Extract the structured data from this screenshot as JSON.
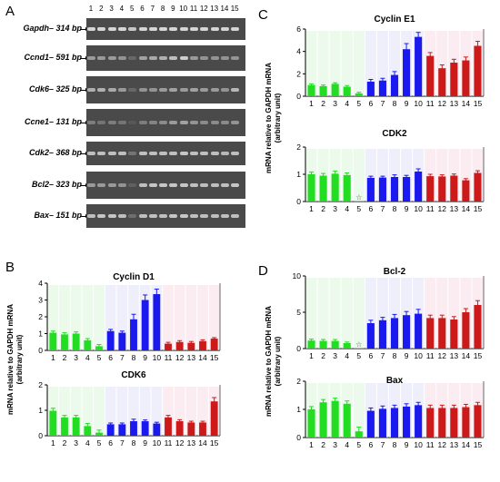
{
  "panels": {
    "A": {
      "letter": "A"
    },
    "B": {
      "letter": "B"
    },
    "C": {
      "letter": "C"
    },
    "D": {
      "letter": "D"
    }
  },
  "gel": {
    "lanes": [
      "1",
      "2",
      "3",
      "4",
      "5",
      "6",
      "7",
      "8",
      "9",
      "10",
      "11",
      "12",
      "13",
      "14",
      "15"
    ],
    "rows": [
      {
        "gene": "Gapdh",
        "size": "314 bp",
        "intensities": [
          0.95,
          0.95,
          0.95,
          0.95,
          0.85,
          0.95,
          0.95,
          0.95,
          0.95,
          0.95,
          0.95,
          0.95,
          0.95,
          0.95,
          0.95
        ]
      },
      {
        "gene": "Ccnd1",
        "size": "591 bp",
        "intensities": [
          0.55,
          0.55,
          0.55,
          0.5,
          0.2,
          0.6,
          0.65,
          0.7,
          0.8,
          0.9,
          0.55,
          0.5,
          0.5,
          0.5,
          0.5
        ]
      },
      {
        "gene": "Cdk6",
        "size": "325 bp",
        "intensities": [
          0.7,
          0.7,
          0.65,
          0.55,
          0.2,
          0.5,
          0.5,
          0.55,
          0.6,
          0.55,
          0.6,
          0.55,
          0.55,
          0.5,
          0.75
        ]
      },
      {
        "gene": "Ccne1",
        "size": "131 bp",
        "intensities": [
          0.35,
          0.3,
          0.35,
          0.3,
          0.1,
          0.35,
          0.4,
          0.45,
          0.55,
          0.6,
          0.5,
          0.45,
          0.45,
          0.45,
          0.5
        ]
      },
      {
        "gene": "Cdk2",
        "size": "368 bp",
        "intensities": [
          0.8,
          0.8,
          0.8,
          0.8,
          0.3,
          0.8,
          0.8,
          0.8,
          0.8,
          0.85,
          0.8,
          0.8,
          0.8,
          0.75,
          0.8
        ]
      },
      {
        "gene": "Bcl2",
        "size": "323 bp",
        "intensities": [
          0.55,
          0.55,
          0.55,
          0.5,
          0.15,
          0.8,
          0.85,
          0.85,
          0.85,
          0.85,
          0.8,
          0.8,
          0.8,
          0.8,
          0.85
        ]
      },
      {
        "gene": "Bax",
        "size": "151 bp",
        "intensities": [
          0.8,
          0.85,
          0.85,
          0.8,
          0.25,
          0.8,
          0.8,
          0.8,
          0.85,
          0.85,
          0.8,
          0.8,
          0.8,
          0.8,
          0.8
        ]
      }
    ]
  },
  "ylabel": {
    "line1": "mRNA relative to GAPDH mRNA",
    "line2": "(arbitrary unit)"
  },
  "colors": {
    "green": "#22dd22",
    "blue": "#1a1aee",
    "red": "#cc1a1a",
    "green_bg": "#ddf5dd",
    "blue_bg": "#e2e2f8",
    "red_bg": "#f8dde6"
  },
  "chart_data": [
    {
      "type": "bar",
      "title": "Cyclin E1",
      "categories": [
        "1",
        "2",
        "3",
        "4",
        "5",
        "6",
        "7",
        "8",
        "9",
        "10",
        "11",
        "12",
        "13",
        "14",
        "15"
      ],
      "values": [
        1.0,
        0.9,
        1.1,
        0.85,
        0.25,
        1.3,
        1.4,
        1.9,
        4.2,
        5.3,
        3.6,
        2.5,
        3.0,
        3.2,
        4.5
      ],
      "errors": [
        0.1,
        0.1,
        0.1,
        0.1,
        0.1,
        0.2,
        0.2,
        0.3,
        0.5,
        0.4,
        0.3,
        0.3,
        0.3,
        0.3,
        0.4
      ],
      "ylim": [
        0,
        6
      ],
      "yticks": [
        0,
        2,
        4,
        6
      ]
    },
    {
      "type": "bar",
      "title": "CDK2",
      "categories": [
        "1",
        "2",
        "3",
        "4",
        "5",
        "6",
        "7",
        "8",
        "9",
        "10",
        "11",
        "12",
        "13",
        "14",
        "15"
      ],
      "values": [
        1.0,
        0.95,
        1.02,
        0.97,
        0,
        0.87,
        0.88,
        0.9,
        0.9,
        1.1,
        0.93,
        0.92,
        0.95,
        0.78,
        1.05
      ],
      "errors": [
        0.08,
        0.08,
        0.1,
        0.08,
        0,
        0.06,
        0.05,
        0.08,
        0.06,
        0.1,
        0.07,
        0.06,
        0.06,
        0.06,
        0.08
      ],
      "ylim": [
        0,
        2
      ],
      "yticks": [
        0,
        1,
        2
      ]
    },
    {
      "type": "bar",
      "title": "Cyclin D1",
      "categories": [
        "1",
        "2",
        "3",
        "4",
        "5",
        "6",
        "7",
        "8",
        "9",
        "10",
        "11",
        "12",
        "13",
        "14",
        "15"
      ],
      "values": [
        1.05,
        0.95,
        1.0,
        0.6,
        0.25,
        1.15,
        1.05,
        1.85,
        3.0,
        3.35,
        0.4,
        0.5,
        0.45,
        0.55,
        0.7
      ],
      "errors": [
        0.1,
        0.1,
        0.1,
        0.1,
        0.1,
        0.1,
        0.1,
        0.3,
        0.3,
        0.3,
        0.08,
        0.08,
        0.08,
        0.08,
        0.06
      ],
      "ylim": [
        0,
        4
      ],
      "yticks": [
        0,
        1,
        2,
        3,
        4
      ]
    },
    {
      "type": "bar",
      "title": "CDK6",
      "categories": [
        "1",
        "2",
        "3",
        "4",
        "5",
        "6",
        "7",
        "8",
        "9",
        "10",
        "11",
        "12",
        "13",
        "14",
        "15"
      ],
      "values": [
        0.98,
        0.72,
        0.72,
        0.38,
        0.12,
        0.45,
        0.45,
        0.57,
        0.57,
        0.48,
        0.72,
        0.57,
        0.52,
        0.52,
        1.35
      ],
      "errors": [
        0.1,
        0.08,
        0.08,
        0.1,
        0.1,
        0.05,
        0.05,
        0.08,
        0.05,
        0.05,
        0.08,
        0.06,
        0.05,
        0.05,
        0.15
      ],
      "ylim": [
        0,
        2
      ],
      "yticks": [
        0,
        1,
        2
      ]
    },
    {
      "type": "bar",
      "title": "Bcl-2",
      "categories": [
        "1",
        "2",
        "3",
        "4",
        "5",
        "6",
        "7",
        "8",
        "9",
        "10",
        "11",
        "12",
        "13",
        "14",
        "15"
      ],
      "values": [
        1.1,
        1.05,
        1.05,
        0.75,
        0,
        3.5,
        3.9,
        4.2,
        4.6,
        4.8,
        4.2,
        4.2,
        4.0,
        5.0,
        6.0
      ],
      "errors": [
        0.2,
        0.2,
        0.2,
        0.15,
        0,
        0.4,
        0.4,
        0.5,
        0.5,
        0.6,
        0.4,
        0.4,
        0.4,
        0.5,
        0.6
      ],
      "ylim": [
        0,
        10
      ],
      "yticks": [
        0,
        5,
        10
      ]
    },
    {
      "type": "bar",
      "title": "Bax",
      "categories": [
        "1",
        "2",
        "3",
        "4",
        "5",
        "6",
        "7",
        "8",
        "9",
        "10",
        "11",
        "12",
        "13",
        "14",
        "15"
      ],
      "values": [
        1.0,
        1.25,
        1.3,
        1.2,
        0.22,
        0.95,
        1.02,
        1.05,
        1.1,
        1.15,
        1.05,
        1.05,
        1.05,
        1.08,
        1.15
      ],
      "errors": [
        0.1,
        0.1,
        0.1,
        0.1,
        0.15,
        0.1,
        0.1,
        0.1,
        0.1,
        0.1,
        0.1,
        0.1,
        0.1,
        0.1,
        0.1
      ],
      "ylim": [
        0,
        2
      ],
      "yticks": [
        0,
        1,
        2
      ]
    }
  ]
}
